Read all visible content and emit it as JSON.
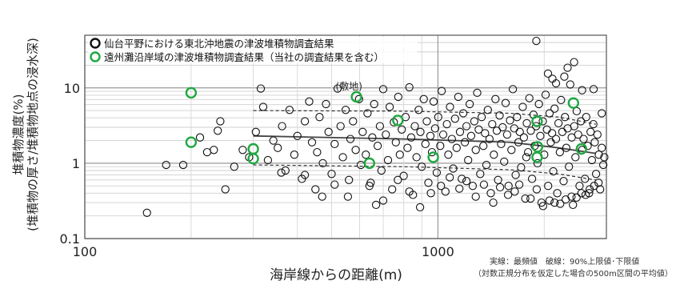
{
  "chart_data": {
    "type": "scatter",
    "xscale": "log",
    "yscale": "log",
    "xlim": [
      100,
      3000
    ],
    "ylim": [
      0.1,
      50
    ],
    "xlabel": "海岸線からの距離(m)",
    "ylabel": "堆積物濃度(%)",
    "ylabel2": "(堆積物の厚さ/堆積物地点の浸水深)",
    "xticks": [
      {
        "v": 100,
        "label": "100"
      },
      {
        "v": 1000,
        "label": "1000"
      }
    ],
    "yticks": [
      {
        "v": 0.1,
        "label": "0.1"
      },
      {
        "v": 1,
        "label": "1"
      },
      {
        "v": 10,
        "label": "10"
      }
    ],
    "legend": [
      {
        "label": "仙台平野における東北沖地震の津波堆積物調査結果",
        "color": "#111111"
      },
      {
        "label": "遠州灘沿岸域の津波堆積物調査結果（当社の調査結果を含む）",
        "color": "#1fa842"
      }
    ],
    "annotations": [
      {
        "text": "(敷地)",
        "x": 560,
        "y": 9.5
      }
    ],
    "series": [
      {
        "name": "仙台平野における東北沖地震の津波堆積物調査結果",
        "color": "#111111",
        "points": [
          [
            150,
            0.22
          ],
          [
            170,
            0.95
          ],
          [
            190,
            0.95
          ],
          [
            212,
            2.2
          ],
          [
            222,
            1.4
          ],
          [
            232,
            1.5
          ],
          [
            238,
            2.7
          ],
          [
            242,
            3.6
          ],
          [
            250,
            0.45
          ],
          [
            265,
            0.9
          ],
          [
            280,
            1.5
          ],
          [
            292,
            1.2
          ],
          [
            305,
            2.6
          ],
          [
            315,
            9.8
          ],
          [
            320,
            5.6
          ],
          [
            330,
            1.1
          ],
          [
            342,
            2.0
          ],
          [
            352,
            1.6
          ],
          [
            362,
            3.1
          ],
          [
            370,
            0.8
          ],
          [
            380,
            5.1
          ],
          [
            392,
            1.3
          ],
          [
            400,
            2.3
          ],
          [
            412,
            0.62
          ],
          [
            420,
            3.6
          ],
          [
            432,
            6.6
          ],
          [
            440,
            1.9
          ],
          [
            450,
            0.45
          ],
          [
            455,
            1.4
          ],
          [
            462,
            4.1
          ],
          [
            472,
            1.0
          ],
          [
            482,
            6.1
          ],
          [
            490,
            2.6
          ],
          [
            500,
            0.72
          ],
          [
            510,
            1.8
          ],
          [
            520,
            9.8
          ],
          [
            530,
            3.1
          ],
          [
            538,
            1.2
          ],
          [
            548,
            5.1
          ],
          [
            556,
            0.36
          ],
          [
            565,
            2.1
          ],
          [
            575,
            3.6
          ],
          [
            585,
            1.5
          ],
          [
            598,
            7.1
          ],
          [
            605,
            0.95
          ],
          [
            612,
            2.6
          ],
          [
            625,
            1.3
          ],
          [
            632,
            4.6
          ],
          [
            645,
            0.55
          ],
          [
            652,
            2.2
          ],
          [
            660,
            6.1
          ],
          [
            668,
            0.28
          ],
          [
            675,
            1.7
          ],
          [
            685,
            3.1
          ],
          [
            692,
            0.8
          ],
          [
            700,
            9.6
          ],
          [
            712,
            2.4
          ],
          [
            722,
            1.1
          ],
          [
            730,
            5.6
          ],
          [
            742,
            0.45
          ],
          [
            750,
            3.5
          ],
          [
            760,
            1.9
          ],
          [
            772,
            7.6
          ],
          [
            780,
            1.3
          ],
          [
            790,
            2.8
          ],
          [
            800,
            0.68
          ],
          [
            810,
            4.1
          ],
          [
            820,
            1.6
          ],
          [
            830,
            10.2
          ],
          [
            840,
            2.2
          ],
          [
            850,
            0.38
          ],
          [
            860,
            3.1
          ],
          [
            870,
            1.2
          ],
          [
            882,
            5.1
          ],
          [
            892,
            2.6
          ],
          [
            900,
            0.9
          ],
          [
            912,
            7.1
          ],
          [
            922,
            1.8
          ],
          [
            930,
            3.6
          ],
          [
            940,
            0.55
          ],
          [
            952,
            2.3
          ],
          [
            962,
            1.4
          ],
          [
            972,
            6.6
          ],
          [
            982,
            2.9
          ],
          [
            992,
            0.75
          ],
          [
            1002,
            4.1
          ],
          [
            1015,
            1.7
          ],
          [
            1025,
            9.1
          ],
          [
            1035,
            2.4
          ],
          [
            1050,
            0.42
          ],
          [
            1060,
            3.3
          ],
          [
            1070,
            1.3
          ],
          [
            1082,
            5.6
          ],
          [
            1095,
            2.1
          ],
          [
            1105,
            0.85
          ],
          [
            1118,
            3.9
          ],
          [
            1130,
            1.6
          ],
          [
            1142,
            7.6
          ],
          [
            1155,
            2.6
          ],
          [
            1168,
            0.62
          ],
          [
            1180,
            4.6
          ],
          [
            1192,
            1.9
          ],
          [
            1205,
            3.1
          ],
          [
            1218,
            1.1
          ],
          [
            1230,
            6.1
          ],
          [
            1242,
            2.3
          ],
          [
            1255,
            0.5
          ],
          [
            1268,
            3.6
          ],
          [
            1280,
            1.5
          ],
          [
            1292,
            8.6
          ],
          [
            1305,
            2.8
          ],
          [
            1318,
            0.72
          ],
          [
            1330,
            4.1
          ],
          [
            1345,
            1.7
          ],
          [
            1360,
            2.5
          ],
          [
            1372,
            0.95
          ],
          [
            1385,
            5.1
          ],
          [
            1400,
            2.1
          ],
          [
            1412,
            0.4
          ],
          [
            1425,
            3.3
          ],
          [
            1440,
            1.3
          ],
          [
            1455,
            7.1
          ],
          [
            1468,
            2.7
          ],
          [
            1480,
            0.6
          ],
          [
            1495,
            4.3
          ],
          [
            1510,
            1.8
          ],
          [
            1525,
            3.0
          ],
          [
            1540,
            1.05
          ],
          [
            1555,
            6.3
          ],
          [
            1570,
            2.4
          ],
          [
            1585,
            0.5
          ],
          [
            1600,
            3.7
          ],
          [
            1615,
            1.5
          ],
          [
            1630,
            9.6
          ],
          [
            1645,
            2.9
          ],
          [
            1660,
            0.7
          ],
          [
            1675,
            4.1
          ],
          [
            1690,
            1.9
          ],
          [
            1705,
            2.6
          ],
          [
            1720,
            0.88
          ],
          [
            1738,
            5.6
          ],
          [
            1752,
            2.2
          ],
          [
            1768,
            0.34
          ],
          [
            1785,
            3.4
          ],
          [
            1800,
            1.4
          ],
          [
            1815,
            7.3
          ],
          [
            1832,
            2.7
          ],
          [
            1848,
            0.62
          ],
          [
            1865,
            4.4
          ],
          [
            1880,
            1.7
          ],
          [
            1898,
            3.1
          ],
          [
            1915,
            1.0
          ],
          [
            1932,
            6.1
          ],
          [
            1950,
            2.3
          ],
          [
            1965,
            0.3
          ],
          [
            1982,
            3.6
          ],
          [
            2000,
            1.3
          ],
          [
            2018,
            8.1
          ],
          [
            2035,
            2.8
          ],
          [
            2052,
            0.5
          ],
          [
            2070,
            4.6
          ],
          [
            2088,
            1.9
          ],
          [
            2105,
            2.5
          ],
          [
            2122,
            0.78
          ],
          [
            2140,
            5.3
          ],
          [
            2160,
            2.1
          ],
          [
            2178,
            0.4
          ],
          [
            2195,
            3.4
          ],
          [
            2215,
            1.4
          ],
          [
            2232,
            6.9
          ],
          [
            2250,
            2.6
          ],
          [
            2270,
            0.58
          ],
          [
            2290,
            4.1
          ],
          [
            2310,
            1.6
          ],
          [
            2330,
            2.9
          ],
          [
            2350,
            0.9
          ],
          [
            2370,
            11.1
          ],
          [
            2392,
            2.2
          ],
          [
            2412,
            0.28
          ],
          [
            2432,
            3.1
          ],
          [
            2452,
            1.2
          ],
          [
            2472,
            4.9
          ],
          [
            2495,
            2.4
          ],
          [
            2518,
            0.5
          ],
          [
            2540,
            3.6
          ],
          [
            2562,
            1.5
          ],
          [
            2585,
            2.1
          ],
          [
            2608,
            0.62
          ],
          [
            2630,
            4.1
          ],
          [
            2655,
            1.7
          ],
          [
            2680,
            0.4
          ],
          [
            2705,
            2.6
          ],
          [
            2730,
            1.1
          ],
          [
            2755,
            3.3
          ],
          [
            2780,
            1.9
          ],
          [
            2805,
            0.72
          ],
          [
            2830,
            2.4
          ],
          [
            2855,
            1.3
          ],
          [
            2880,
            0.45
          ],
          [
            2910,
            1.6
          ],
          [
            2940,
            0.95
          ],
          [
            2960,
            1.2
          ],
          [
            1900,
            42
          ],
          [
            2050,
            15.5
          ],
          [
            2110,
            13.2
          ],
          [
            2280,
            14.1
          ],
          [
            2160,
            11.5
          ],
          [
            2430,
            22.0
          ],
          [
            2330,
            18.5
          ],
          [
            2760,
            9.6
          ],
          [
            2910,
            4.6
          ],
          [
            2560,
            9.3
          ],
          [
            1780,
            1.2
          ],
          [
            1830,
            0.34
          ],
          [
            1905,
            0.45
          ],
          [
            1985,
            0.27
          ],
          [
            2070,
            0.32
          ],
          [
            2140,
            0.3
          ],
          [
            2220,
            0.29
          ],
          [
            2300,
            0.33
          ],
          [
            2390,
            0.36
          ],
          [
            2470,
            0.35
          ],
          [
            2550,
            0.4
          ],
          [
            2620,
            0.38
          ],
          [
            2690,
            0.45
          ],
          [
            2770,
            0.5
          ],
          [
            2850,
            0.55
          ],
          [
            1700,
            0.52
          ],
          [
            1650,
            0.42
          ],
          [
            1580,
            0.38
          ],
          [
            1500,
            0.48
          ],
          [
            1435,
            0.3
          ],
          [
            1350,
            0.52
          ],
          [
            1280,
            0.36
          ],
          [
            1205,
            0.58
          ],
          [
            1150,
            0.46
          ],
          [
            1080,
            0.65
          ],
          [
            1020,
            0.5
          ],
          [
            955,
            0.4
          ],
          [
            890,
            0.26
          ],
          [
            830,
            0.42
          ],
          [
            770,
            0.6
          ],
          [
            700,
            0.32
          ],
          [
            640,
            0.5
          ],
          [
            560,
            0.6
          ],
          [
            510,
            0.52
          ],
          [
            470,
            0.36
          ],
          [
            420,
            0.7
          ],
          [
            360,
            0.75
          ]
        ]
      },
      {
        "name": "遠州灘沿岸域の津波堆積物調査結果（当社の調査結果を含む）",
        "color": "#1fa842",
        "points": [
          [
            200,
            8.6
          ],
          [
            200,
            1.9
          ],
          [
            300,
            1.55
          ],
          [
            300,
            1.15
          ],
          [
            588,
            7.6
          ],
          [
            640,
            1.0
          ],
          [
            770,
            3.7
          ],
          [
            970,
            1.2
          ],
          [
            1910,
            3.6
          ],
          [
            1915,
            1.65
          ],
          [
            1910,
            1.2
          ],
          [
            2420,
            6.3
          ],
          [
            2550,
            1.55
          ]
        ]
      }
    ],
    "lines": [
      {
        "kind": "solid",
        "points": [
          [
            300,
            2.3
          ],
          [
            800,
            2.1
          ],
          [
            1600,
            1.9
          ],
          [
            2200,
            1.6
          ],
          [
            2800,
            1.35
          ]
        ]
      },
      {
        "kind": "dashed",
        "points": [
          [
            300,
            5.0
          ],
          [
            800,
            4.9
          ],
          [
            1600,
            4.6
          ],
          [
            2200,
            4.1
          ],
          [
            2800,
            3.3
          ]
        ]
      },
      {
        "kind": "dashed",
        "points": [
          [
            300,
            0.95
          ],
          [
            800,
            0.9
          ],
          [
            1600,
            0.82
          ],
          [
            2200,
            0.72
          ],
          [
            2800,
            0.6
          ]
        ]
      }
    ],
    "grid": true
  },
  "notes": {
    "line1": "実線：最頻値　破線：90%上限値･下限値",
    "line2": "（対数正規分布を仮定した場合の500m区間の平均値）"
  }
}
